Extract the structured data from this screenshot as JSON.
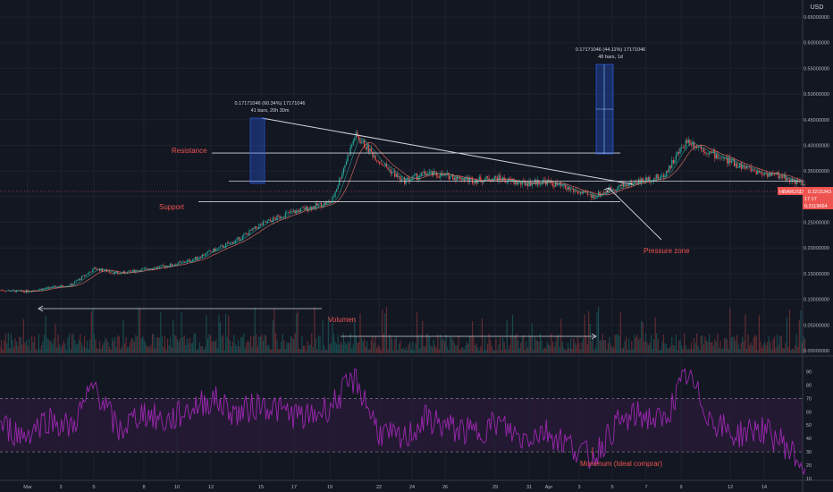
{
  "chart_data": {
    "type": "candlestick",
    "currency_label": "USD",
    "price_axis": {
      "ylim": [
        0,
        0.65
      ],
      "ticks": [
        "0.65000000",
        "0.60000000",
        "0.55000000",
        "0.50000000",
        "0.45000000",
        "0.40000000",
        "0.35000000",
        "0.30000000",
        "0.25000000",
        "0.20000000",
        "0.15000000",
        "0.10000000",
        "0.05000000",
        "0.00000000"
      ],
      "tick_values": [
        0.65,
        0.6,
        0.55,
        0.5,
        0.45,
        0.4,
        0.35,
        0.3,
        0.25,
        0.2,
        0.15,
        0.1,
        0.05,
        0.0
      ]
    },
    "rsi_axis": {
      "ylim": [
        10,
        95
      ],
      "ticks": [
        "90",
        "80",
        "70",
        "60",
        "50",
        "40",
        "30",
        "20",
        "10"
      ],
      "tick_values": [
        90,
        80,
        70,
        60,
        50,
        40,
        30,
        20,
        10
      ],
      "band": [
        30,
        70
      ]
    },
    "x_axis": {
      "labels": [
        "Mar",
        "3",
        "5",
        "8",
        "10",
        "12",
        "15",
        "17",
        "19",
        "22",
        "24",
        "26",
        "29",
        "31",
        "Apr",
        "3",
        "5",
        "7",
        "9",
        "12",
        "14"
      ]
    },
    "price_badges": {
      "symbol": "HBARUSD",
      "value": "0.3215343",
      "sub": "17:17",
      "support_value": "0.3119664"
    },
    "price_series": [
      {
        "d": 0,
        "p": 0.118
      },
      {
        "d": 1,
        "p": 0.115
      },
      {
        "d": 2,
        "p": 0.122
      },
      {
        "d": 3,
        "p": 0.128
      },
      {
        "d": 4,
        "p": 0.16
      },
      {
        "d": 5,
        "p": 0.15
      },
      {
        "d": 6,
        "p": 0.158
      },
      {
        "d": 7,
        "p": 0.165
      },
      {
        "d": 8,
        "p": 0.175
      },
      {
        "d": 9,
        "p": 0.195
      },
      {
        "d": 10,
        "p": 0.215
      },
      {
        "d": 11,
        "p": 0.245
      },
      {
        "d": 12,
        "p": 0.265
      },
      {
        "d": 13,
        "p": 0.278
      },
      {
        "d": 14,
        "p": 0.29
      },
      {
        "d": 15,
        "p": 0.42
      },
      {
        "d": 16,
        "p": 0.37
      },
      {
        "d": 17,
        "p": 0.33
      },
      {
        "d": 18,
        "p": 0.345
      },
      {
        "d": 19,
        "p": 0.34
      },
      {
        "d": 20,
        "p": 0.332
      },
      {
        "d": 21,
        "p": 0.336
      },
      {
        "d": 22,
        "p": 0.325
      },
      {
        "d": 23,
        "p": 0.33
      },
      {
        "d": 24,
        "p": 0.315
      },
      {
        "d": 25,
        "p": 0.3
      },
      {
        "d": 26,
        "p": 0.318
      },
      {
        "d": 27,
        "p": 0.33
      },
      {
        "d": 28,
        "p": 0.34
      },
      {
        "d": 29,
        "p": 0.41
      },
      {
        "d": 30,
        "p": 0.385
      },
      {
        "d": 31,
        "p": 0.365
      },
      {
        "d": 32,
        "p": 0.348
      },
      {
        "d": 33,
        "p": 0.34
      },
      {
        "d": 34,
        "p": 0.322
      }
    ],
    "rsi_series": [
      {
        "d": 0,
        "v": 50
      },
      {
        "d": 1,
        "v": 42
      },
      {
        "d": 2,
        "v": 55
      },
      {
        "d": 3,
        "v": 48
      },
      {
        "d": 4,
        "v": 80
      },
      {
        "d": 5,
        "v": 45
      },
      {
        "d": 6,
        "v": 60
      },
      {
        "d": 7,
        "v": 52
      },
      {
        "d": 8,
        "v": 62
      },
      {
        "d": 9,
        "v": 70
      },
      {
        "d": 10,
        "v": 58
      },
      {
        "d": 11,
        "v": 66
      },
      {
        "d": 12,
        "v": 60
      },
      {
        "d": 13,
        "v": 55
      },
      {
        "d": 14,
        "v": 65
      },
      {
        "d": 15,
        "v": 85
      },
      {
        "d": 16,
        "v": 45
      },
      {
        "d": 17,
        "v": 38
      },
      {
        "d": 18,
        "v": 55
      },
      {
        "d": 19,
        "v": 48
      },
      {
        "d": 20,
        "v": 44
      },
      {
        "d": 21,
        "v": 52
      },
      {
        "d": 22,
        "v": 40
      },
      {
        "d": 23,
        "v": 46
      },
      {
        "d": 24,
        "v": 36
      },
      {
        "d": 25,
        "v": 25
      },
      {
        "d": 26,
        "v": 50
      },
      {
        "d": 27,
        "v": 58
      },
      {
        "d": 28,
        "v": 52
      },
      {
        "d": 29,
        "v": 88
      },
      {
        "d": 30,
        "v": 55
      },
      {
        "d": 31,
        "v": 42
      },
      {
        "d": 32,
        "v": 48
      },
      {
        "d": 33,
        "v": 38
      },
      {
        "d": 34,
        "v": 18
      }
    ],
    "annotations": {
      "resistance": "Resistance",
      "support": "Support",
      "volumen": "Volumen",
      "pressure_zone": "Pressure zone",
      "momentum": "Monenum (Ideal comprar)",
      "measure1_line1": "0.17171046 (60.34%) 17171046",
      "measure1_line2": "41 bars, 20h 30m",
      "measure2_line1": "0.17171046 (44.11%) 17171046",
      "measure2_line2": "48 bars, 1d"
    },
    "levels": {
      "resistance": 0.385,
      "middle": 0.33,
      "support": 0.29
    },
    "colors": {
      "background": "#131722",
      "up": "#26a69a",
      "down": "#ef5350",
      "rsi": "#9c27b0",
      "annotation": "#ef5350",
      "badge": "#ef5350"
    }
  }
}
